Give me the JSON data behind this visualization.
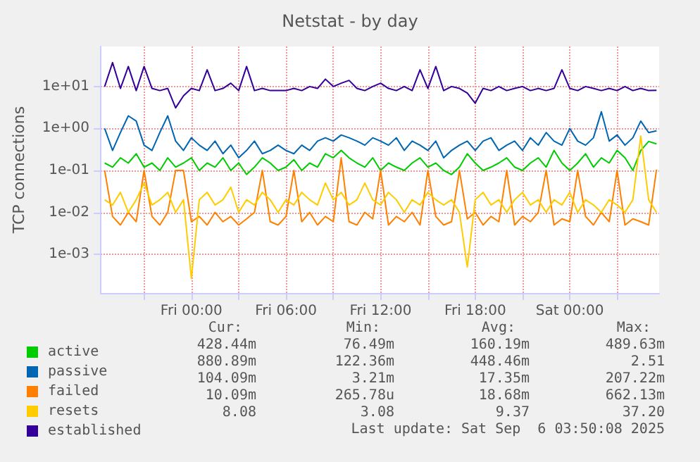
{
  "chart_data": {
    "type": "line",
    "title": "Netstat - by day",
    "ylabel": "TCP connections",
    "x": [
      "2025-09-04T18:30",
      "2025-09-04T19:00",
      "2025-09-04T19:30",
      "2025-09-04T20:00",
      "2025-09-04T20:30",
      "2025-09-04T21:00",
      "2025-09-04T21:30",
      "2025-09-04T22:00",
      "2025-09-04T22:30",
      "2025-09-04T23:00",
      "2025-09-04T23:30",
      "2025-09-05T00:00",
      "2025-09-05T00:30",
      "2025-09-05T01:00",
      "2025-09-05T01:30",
      "2025-09-05T02:00",
      "2025-09-05T02:30",
      "2025-09-05T03:00",
      "2025-09-05T03:30",
      "2025-09-05T04:00",
      "2025-09-05T04:30",
      "2025-09-05T05:00",
      "2025-09-05T05:30",
      "2025-09-05T06:00",
      "2025-09-05T06:30",
      "2025-09-05T07:00",
      "2025-09-05T07:30",
      "2025-09-05T08:00",
      "2025-09-05T08:30",
      "2025-09-05T09:00",
      "2025-09-05T09:30",
      "2025-09-05T10:00",
      "2025-09-05T10:30",
      "2025-09-05T11:00",
      "2025-09-05T11:30",
      "2025-09-05T12:00",
      "2025-09-05T12:30",
      "2025-09-05T13:00",
      "2025-09-05T13:30",
      "2025-09-05T14:00",
      "2025-09-05T14:30",
      "2025-09-05T15:00",
      "2025-09-05T15:30",
      "2025-09-05T16:00",
      "2025-09-05T16:30",
      "2025-09-05T17:00",
      "2025-09-05T17:30",
      "2025-09-05T18:00",
      "2025-09-05T18:30",
      "2025-09-05T19:00",
      "2025-09-05T19:30",
      "2025-09-05T20:00",
      "2025-09-05T20:30",
      "2025-09-05T21:00",
      "2025-09-05T21:30",
      "2025-09-05T22:00",
      "2025-09-05T22:30",
      "2025-09-05T23:00",
      "2025-09-05T23:30",
      "2025-09-06T00:00",
      "2025-09-06T00:30",
      "2025-09-06T01:00",
      "2025-09-06T01:30",
      "2025-09-06T02:00",
      "2025-09-06T02:30",
      "2025-09-06T03:00",
      "2025-09-06T03:30",
      "2025-09-06T04:00",
      "2025-09-06T04:30",
      "2025-09-06T05:00",
      "2025-09-06T05:30"
    ],
    "series": [
      {
        "name": "active",
        "color": "#00cc00",
        "values": [
          0.15,
          0.12,
          0.2,
          0.15,
          0.25,
          0.12,
          0.15,
          0.1,
          0.2,
          0.12,
          0.15,
          0.2,
          0.1,
          0.15,
          0.12,
          0.2,
          0.1,
          0.15,
          0.08,
          0.12,
          0.2,
          0.15,
          0.1,
          0.12,
          0.18,
          0.1,
          0.15,
          0.12,
          0.25,
          0.2,
          0.3,
          0.2,
          0.15,
          0.12,
          0.2,
          0.1,
          0.15,
          0.12,
          0.1,
          0.15,
          0.2,
          0.12,
          0.15,
          0.1,
          0.08,
          0.12,
          0.25,
          0.15,
          0.1,
          0.12,
          0.15,
          0.2,
          0.12,
          0.1,
          0.15,
          0.2,
          0.12,
          0.3,
          0.15,
          0.1,
          0.15,
          0.25,
          0.12,
          0.2,
          0.15,
          0.3,
          0.2,
          0.1,
          0.3,
          0.49,
          0.43
        ]
      },
      {
        "name": "passive",
        "color": "#0066b3",
        "values": [
          1.0,
          0.3,
          0.8,
          2.0,
          1.5,
          0.4,
          0.3,
          0.8,
          2.0,
          0.5,
          0.3,
          0.6,
          0.4,
          0.3,
          0.5,
          0.25,
          0.4,
          0.2,
          0.3,
          0.5,
          0.25,
          0.3,
          0.4,
          0.3,
          0.25,
          0.4,
          0.3,
          0.5,
          0.6,
          0.5,
          0.7,
          0.6,
          0.5,
          0.4,
          0.6,
          0.5,
          0.4,
          0.6,
          0.3,
          0.5,
          0.4,
          0.3,
          0.5,
          0.2,
          0.3,
          0.4,
          0.5,
          0.3,
          0.5,
          0.6,
          0.3,
          0.4,
          0.5,
          0.3,
          0.6,
          0.4,
          0.8,
          0.5,
          0.4,
          1.0,
          0.5,
          0.4,
          0.6,
          2.51,
          0.5,
          0.7,
          0.4,
          0.6,
          1.5,
          0.8,
          0.88
        ]
      },
      {
        "name": "failed",
        "color": "#ff8000",
        "values": [
          0.1,
          0.008,
          0.005,
          0.01,
          0.006,
          0.1,
          0.008,
          0.005,
          0.01,
          0.1,
          0.1,
          0.006,
          0.008,
          0.005,
          0.01,
          0.006,
          0.008,
          0.005,
          0.007,
          0.01,
          0.1,
          0.006,
          0.005,
          0.008,
          0.1,
          0.006,
          0.01,
          0.005,
          0.008,
          0.006,
          0.2,
          0.006,
          0.005,
          0.01,
          0.007,
          0.1,
          0.005,
          0.008,
          0.006,
          0.01,
          0.005,
          0.1,
          0.008,
          0.005,
          0.006,
          0.1,
          0.007,
          0.01,
          0.005,
          0.008,
          0.006,
          0.1,
          0.005,
          0.008,
          0.006,
          0.01,
          0.1,
          0.005,
          0.007,
          0.006,
          0.1,
          0.008,
          0.005,
          0.01,
          0.006,
          0.1,
          0.005,
          0.007,
          0.006,
          0.005,
          0.104
        ]
      },
      {
        "name": "resets",
        "color": "#ffcc00",
        "values": [
          0.02,
          0.015,
          0.03,
          0.01,
          0.02,
          0.05,
          0.015,
          0.02,
          0.03,
          0.01,
          0.02,
          0.000266,
          0.02,
          0.03,
          0.015,
          0.02,
          0.04,
          0.01,
          0.02,
          0.015,
          0.03,
          0.02,
          0.01,
          0.02,
          0.015,
          0.03,
          0.02,
          0.015,
          0.05,
          0.02,
          0.03,
          0.015,
          0.02,
          0.05,
          0.02,
          0.015,
          0.03,
          0.02,
          0.01,
          0.02,
          0.015,
          0.03,
          0.02,
          0.015,
          0.02,
          0.01,
          0.0005,
          0.02,
          0.03,
          0.015,
          0.02,
          0.01,
          0.02,
          0.03,
          0.015,
          0.02,
          0.01,
          0.02,
          0.015,
          0.03,
          0.01,
          0.02,
          0.015,
          0.01,
          0.02,
          0.015,
          0.01,
          0.02,
          0.66,
          0.02,
          0.01
        ]
      },
      {
        "name": "established",
        "color": "#330099",
        "values": [
          10,
          37.2,
          9,
          30,
          8,
          30,
          9,
          8,
          9,
          3.1,
          6,
          9,
          8,
          25,
          8,
          9,
          12,
          8,
          30,
          8,
          9,
          8,
          8,
          8,
          9,
          8,
          10,
          9,
          15,
          10,
          12,
          14,
          9,
          8,
          10,
          12,
          9,
          8,
          10,
          8,
          25,
          9,
          30,
          8,
          10,
          9,
          7,
          4,
          9,
          8,
          10,
          8,
          9,
          10,
          8,
          9,
          8,
          9,
          25,
          9,
          8,
          10,
          9,
          8,
          9,
          8,
          10,
          8,
          9,
          8,
          8.08
        ]
      }
    ],
    "xlim": [
      "2025-09-04T18:15",
      "2025-09-06T05:40"
    ],
    "xticks": [
      {
        "value": "2025-09-04T21:00",
        "label": null
      },
      {
        "value": "2025-09-05T00:00",
        "label": "Fri 00:00"
      },
      {
        "value": "2025-09-05T03:00",
        "label": null
      },
      {
        "value": "2025-09-05T06:00",
        "label": "Fri 06:00"
      },
      {
        "value": "2025-09-05T09:00",
        "label": null
      },
      {
        "value": "2025-09-05T12:00",
        "label": "Fri 12:00"
      },
      {
        "value": "2025-09-05T15:00",
        "label": null
      },
      {
        "value": "2025-09-05T18:00",
        "label": "Fri 18:00"
      },
      {
        "value": "2025-09-05T21:00",
        "label": null
      },
      {
        "value": "2025-09-06T00:00",
        "label": "Sat 00:00"
      },
      {
        "value": "2025-09-06T03:00",
        "label": null
      }
    ],
    "ylim": [
      0.00012,
      90
    ],
    "yticks": [
      {
        "value": 0.001,
        "label": "1e-03"
      },
      {
        "value": 0.01,
        "label": "1e-02"
      },
      {
        "value": 0.1,
        "label": "1e-01"
      },
      {
        "value": 1,
        "label": "1e+00"
      },
      {
        "value": 10,
        "label": "1e+01"
      }
    ],
    "log": "y",
    "grid": true,
    "legend": "bottom",
    "annotations": [
      "Cur:",
      "Min:",
      "Avg:",
      "Max:",
      "428.44m",
      "76.49m",
      "160.19m",
      "489.63m",
      "880.89m",
      "122.36m",
      "448.46m",
      "2.51",
      "104.09m",
      "3.21m",
      "17.35m",
      "207.22m",
      "10.09m",
      "265.78u",
      "18.68m",
      "662.13m",
      "8.08",
      "3.08",
      "9.37",
      "37.20",
      "Last update: Sat Sep  6 03:50:08 2025"
    ]
  }
}
